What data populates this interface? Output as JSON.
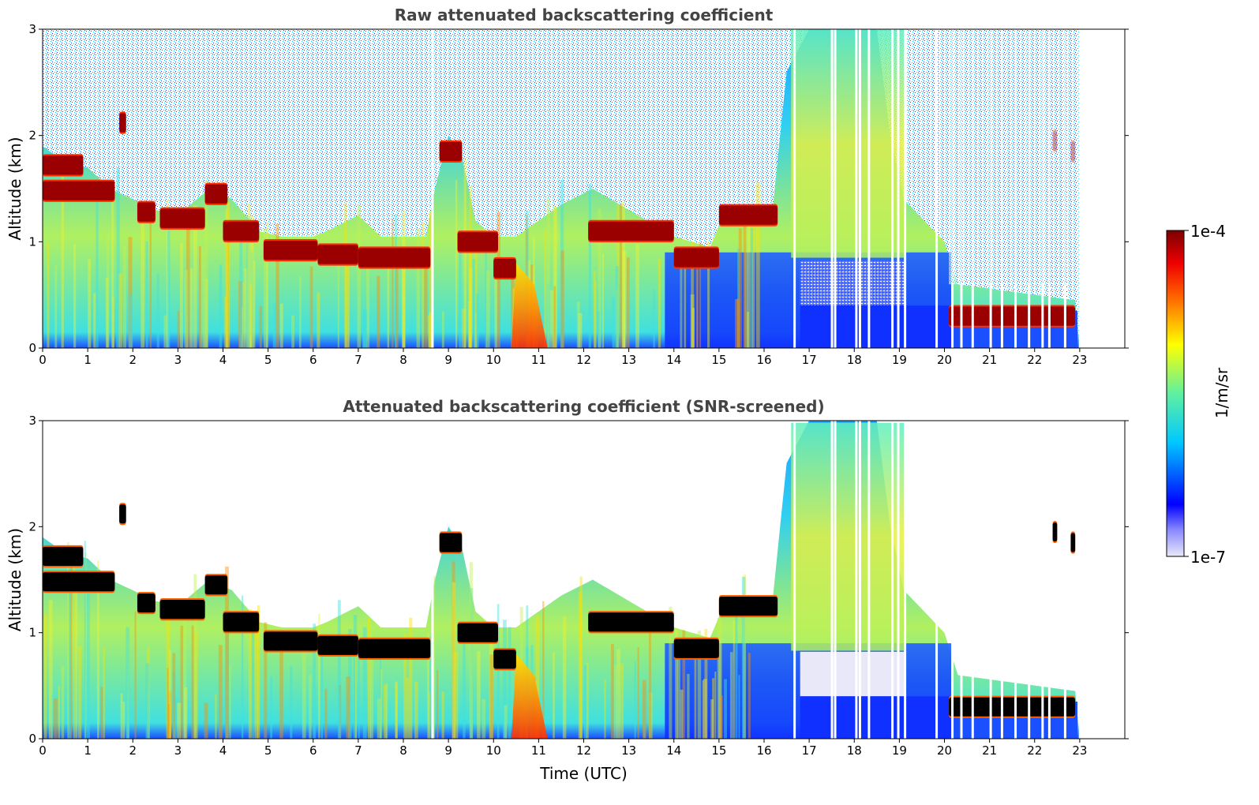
{
  "chart_data": [
    {
      "type": "heatmap",
      "title": "Raw attenuated backscattering coefficient",
      "xlabel": "",
      "ylabel": "Altitude (km)",
      "xlim": [
        0,
        24
      ],
      "ylim": [
        0,
        3
      ],
      "xticks": [
        "0",
        "1",
        "2",
        "3",
        "4",
        "5",
        "6",
        "7",
        "8",
        "9",
        "10",
        "11",
        "12",
        "13",
        "14",
        "15",
        "16",
        "17",
        "18",
        "19",
        "20",
        "21",
        "22",
        "23"
      ],
      "yticks": [
        "0",
        "1",
        "2",
        "3"
      ],
      "cloud_layers": [
        {
          "start": 0.0,
          "end": 0.9,
          "altitude": 1.72,
          "intensity": "high"
        },
        {
          "start": 0.0,
          "end": 1.6,
          "altitude": 1.48,
          "intensity": "high"
        },
        {
          "start": 1.7,
          "end": 1.85,
          "altitude": 2.12,
          "intensity": "high"
        },
        {
          "start": 2.1,
          "end": 2.5,
          "altitude": 1.28,
          "intensity": "high"
        },
        {
          "start": 2.6,
          "end": 3.6,
          "altitude": 1.22,
          "intensity": "high"
        },
        {
          "start": 3.6,
          "end": 4.1,
          "altitude": 1.45,
          "intensity": "high"
        },
        {
          "start": 4.0,
          "end": 4.8,
          "altitude": 1.1,
          "intensity": "high"
        },
        {
          "start": 4.9,
          "end": 6.1,
          "altitude": 0.92,
          "intensity": "high"
        },
        {
          "start": 6.1,
          "end": 7.0,
          "altitude": 0.88,
          "intensity": "high"
        },
        {
          "start": 7.0,
          "end": 8.6,
          "altitude": 0.85,
          "intensity": "high"
        },
        {
          "start": 8.8,
          "end": 9.3,
          "altitude": 1.85,
          "intensity": "high"
        },
        {
          "start": 9.2,
          "end": 10.1,
          "altitude": 1.0,
          "intensity": "high"
        },
        {
          "start": 10.0,
          "end": 10.5,
          "altitude": 0.75,
          "intensity": "high"
        },
        {
          "start": 12.1,
          "end": 14.0,
          "altitude": 1.1,
          "intensity": "high"
        },
        {
          "start": 14.0,
          "end": 15.0,
          "altitude": 0.85,
          "intensity": "high"
        },
        {
          "start": 15.0,
          "end": 16.3,
          "altitude": 1.25,
          "intensity": "high"
        },
        {
          "start": 20.1,
          "end": 22.9,
          "altitude": 0.3,
          "intensity": "high"
        },
        {
          "start": 22.4,
          "end": 22.5,
          "altitude": 1.95,
          "intensity": "high"
        },
        {
          "start": 22.8,
          "end": 22.9,
          "altitude": 1.85,
          "intensity": "high"
        }
      ],
      "aerosol_peak": {
        "start": 10.4,
        "end": 11.2,
        "altitude_top": 0.8,
        "intensity": "medium-high"
      },
      "data_gaps": [
        8.62,
        16.65,
        17.48,
        17.55,
        18.02,
        18.1,
        18.3,
        18.82,
        18.95,
        19.1,
        19.8,
        20.15,
        20.35,
        20.6,
        21.0,
        21.25,
        21.55,
        21.85,
        22.15,
        22.3,
        22.65
      ]
    },
    {
      "type": "heatmap",
      "title": "Attenuated backscattering coefficient (SNR-screened)",
      "xlabel": "Time (UTC)",
      "ylabel": "Altitude (km)",
      "xlim": [
        0,
        24
      ],
      "ylim": [
        0,
        3
      ],
      "xticks": [
        "0",
        "1",
        "2",
        "3",
        "4",
        "5",
        "6",
        "7",
        "8",
        "9",
        "10",
        "11",
        "12",
        "13",
        "14",
        "15",
        "16",
        "17",
        "18",
        "19",
        "20",
        "21",
        "22",
        "23"
      ],
      "yticks": [
        "0",
        "1",
        "2",
        "3"
      ],
      "screened_above_boundary": true,
      "saturated_color": "#000000"
    }
  ],
  "colorbar": {
    "label": "1/m/sr",
    "max_label": "1e-4",
    "min_label": "1e-7",
    "scale": "log",
    "colormap": [
      "#e8e8f8",
      "#0000ff",
      "#00c8ff",
      "#60f0a0",
      "#ffff00",
      "#ff6000",
      "#ee0000",
      "#7a0000"
    ]
  },
  "colors": {
    "noise_blue": "#1a3cff",
    "background": "#ffffff",
    "title_color": "#444444"
  }
}
